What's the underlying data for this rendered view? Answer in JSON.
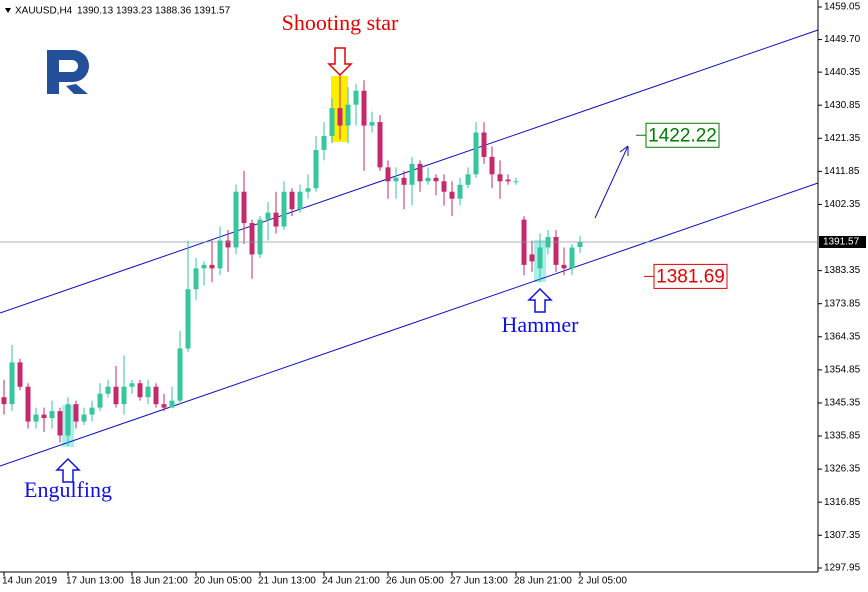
{
  "chart_data": {
    "type": "candlestick",
    "symbol": "XAUUSD,H4",
    "categories": [
      "14 Jun 2019",
      null,
      null,
      null,
      null,
      null,
      null,
      null,
      "17 Jun 13:00",
      null,
      null,
      null,
      null,
      null,
      null,
      null,
      "18 Jun 21:00",
      null,
      null,
      null,
      null,
      null,
      null,
      null,
      "20 Jun 05:00",
      null,
      null,
      null,
      null,
      null,
      null,
      null,
      "21 Jun 13:00",
      null,
      null,
      null,
      null,
      null,
      null,
      null,
      "24 Jun 21:00",
      null,
      null,
      null,
      null,
      null,
      null,
      null,
      "26 Jun 05:00",
      null,
      null,
      null,
      null,
      null,
      null,
      null,
      "27 Jun 13:00",
      null,
      null,
      null,
      null,
      null,
      null,
      null,
      "28 Jun 21:00",
      null,
      null,
      null,
      null,
      null,
      null,
      null,
      "2 Jul 05:00"
    ],
    "open": [
      1347,
      1345,
      1357,
      1350,
      1340,
      1342,
      1341,
      1343,
      1336,
      1345,
      1340,
      1342,
      1344,
      1348,
      1350,
      1345,
      1350,
      1351,
      1347,
      1350,
      1345,
      1344,
      1346,
      1361,
      1378,
      1384,
      1385,
      1384,
      1392,
      1390,
      1406,
      1397,
      1388,
      1398,
      1400,
      1396,
      1406,
      1401,
      1406,
      1407,
      1418,
      1422,
      1430,
      1425,
      1431,
      1435,
      1425,
      1426,
      1413,
      1409,
      1410,
      1408,
      1414,
      1409,
      1410,
      1409,
      1406,
      1404,
      1408,
      1411,
      1423,
      1416,
      1411,
      1409.5,
      1409,
      1398,
      1388,
      1384,
      1390,
      1393,
      1385,
      1384,
      1390.13
    ],
    "high": [
      1352,
      1362,
      1358,
      1351,
      1344,
      1344,
      1346,
      1344,
      1347,
      1346,
      1344,
      1346,
      1351,
      1352,
      1356,
      1359,
      1352,
      1352,
      1352,
      1351,
      1348,
      1350,
      1366,
      1392,
      1387,
      1386,
      1392,
      1396,
      1395,
      1408,
      1412,
      1398,
      1399,
      1403,
      1406,
      1409,
      1407,
      1408,
      1411,
      1422,
      1426,
      1433,
      1440,
      1436,
      1437,
      1438,
      1429,
      1428,
      1415,
      1413,
      1412,
      1416,
      1415,
      1413,
      1411,
      1411,
      1409,
      1410,
      1413,
      1426,
      1426,
      1419,
      1415,
      1411,
      1410,
      1399,
      1392,
      1394,
      1395,
      1395,
      1390,
      1391,
      1393.23
    ],
    "low": [
      1342,
      1343,
      1349,
      1338,
      1338,
      1337,
      1338,
      1334,
      1333,
      1338,
      1339,
      1340,
      1343,
      1347,
      1344,
      1342,
      1348,
      1346,
      1345,
      1344,
      1343,
      1345,
      1345,
      1360,
      1375,
      1379,
      1380,
      1382,
      1383,
      1388,
      1391,
      1381,
      1387,
      1392,
      1394,
      1395,
      1399,
      1400,
      1404,
      1406,
      1415,
      1420,
      1421,
      1420,
      1425,
      1412,
      1423,
      1412,
      1404,
      1404,
      1401,
      1402,
      1406,
      1408,
      1405,
      1402,
      1399,
      1402,
      1407,
      1410,
      1414,
      1407,
      1404,
      1408,
      1408,
      1382,
      1383,
      1380,
      1388,
      1383,
      1382,
      1382,
      1388.36
    ],
    "close": [
      1345,
      1357,
      1350,
      1340,
      1342,
      1341,
      1343,
      1336,
      1345,
      1340,
      1342,
      1344,
      1348,
      1350,
      1345,
      1350,
      1351,
      1347,
      1350,
      1345,
      1344,
      1346,
      1361,
      1378,
      1384,
      1385,
      1384,
      1392,
      1390,
      1406,
      1397,
      1388,
      1398,
      1400,
      1396,
      1406,
      1401,
      1406,
      1407,
      1418,
      1422,
      1430,
      1425,
      1431,
      1435,
      1425,
      1426,
      1413,
      1409,
      1410,
      1408,
      1414,
      1409,
      1410,
      1409,
      1406,
      1404,
      1408,
      1411,
      1423,
      1416,
      1411,
      1409,
      1409,
      1409,
      1385,
      1386,
      1390,
      1393,
      1385,
      1384,
      1390,
      1391.57
    ],
    "up_color": "#36c69c",
    "down_color": "#c5296b",
    "ylim": [
      1296.8,
      1461.06
    ],
    "yticks": [
      1459.05,
      {
        "value": 1449.7,
        "label": "1449.70"
      },
      1440.35,
      1430.85,
      1421.35,
      1411.85,
      1402.35,
      1383.35,
      1373.85,
      1364.35,
      1354.85,
      1345.35,
      1335.85,
      1326.35,
      1316.85,
      1307.35,
      1297.95
    ],
    "annotations": [
      "Shooting star",
      "Hammer",
      "Engulfing"
    ],
    "levels": [
      {
        "value": 1422.22,
        "color": "#007a00"
      },
      {
        "value": 1381.69,
        "color": "#e00000"
      }
    ]
  }
}
